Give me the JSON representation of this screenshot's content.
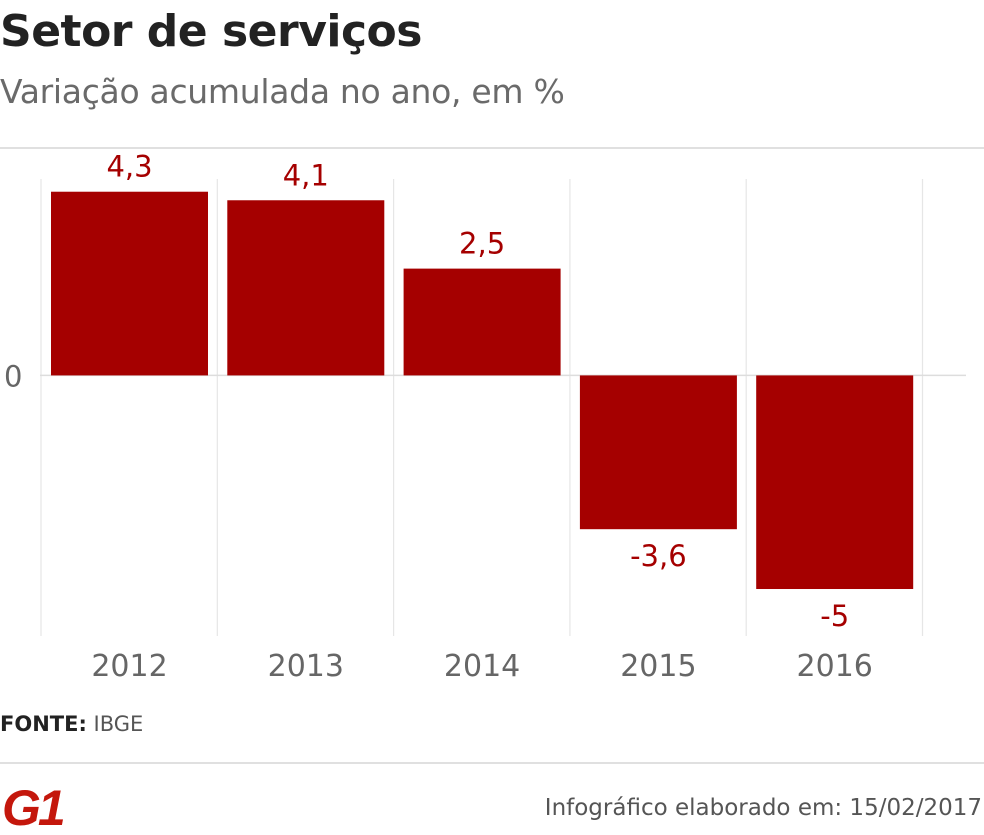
{
  "header": {
    "title": "Setor de serviços",
    "subtitle": "Variação acumulada no ano, em %"
  },
  "chart_data": {
    "type": "bar",
    "categories": [
      "2012",
      "2013",
      "2014",
      "2015",
      "2016"
    ],
    "values": [
      4.3,
      4.1,
      2.5,
      -3.6,
      -5
    ],
    "value_labels": [
      "4,3",
      "4,1",
      "2,5",
      "-3,6",
      "-5"
    ],
    "y_ticks": [
      {
        "value": 0,
        "label": "0"
      }
    ],
    "ylim": [
      -6.1,
      5.3
    ],
    "grid": "vertical separators and zero line",
    "colors": {
      "bar": "#a50000",
      "label": "#a50000",
      "axis_text": "#666666",
      "grid": "#e6e6e6"
    }
  },
  "source": {
    "key": "FONTE:",
    "value": "IBGE"
  },
  "footer": {
    "brand": "G1",
    "note": "Infográfico elaborado em: 15/02/2017",
    "brand_color": "#c4170c"
  }
}
